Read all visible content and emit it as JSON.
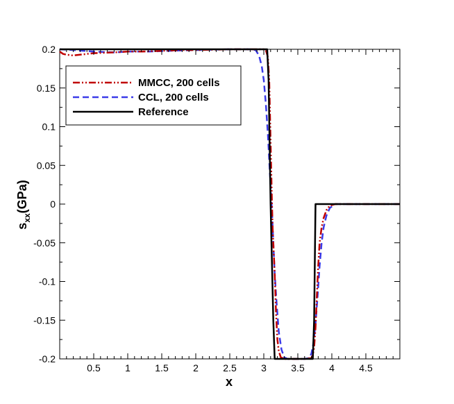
{
  "chart_data": {
    "type": "line",
    "title": "",
    "xlabel": "x",
    "ylabel_main": "s",
    "ylabel_sub": "xx",
    "ylabel_tail": "(GPa)",
    "xlim": [
      0,
      5
    ],
    "ylim": [
      -0.2,
      0.2
    ],
    "xticks": [
      0.5,
      1,
      1.5,
      2,
      2.5,
      3,
      3.5,
      4,
      4.5
    ],
    "xtick_labels": [
      "0.5",
      "1",
      "1.5",
      "2",
      "2.5",
      "3",
      "3.5",
      "4",
      "4.5"
    ],
    "yticks": [
      0.2,
      0.15,
      0.1,
      0.05,
      0,
      -0.05,
      -0.1,
      -0.15,
      -0.2
    ],
    "ytick_labels": [
      "0.2",
      "0.15",
      "0.1",
      "0.05",
      "0",
      "-0.05",
      "-0.1",
      "-0.15",
      "-0.2"
    ],
    "grid": false,
    "legend_position": "top-left",
    "series": [
      {
        "name": "MMCC, 200 cells",
        "color": "#c00000",
        "dash": "dashdotdot",
        "points": [
          [
            0,
            0.197
          ],
          [
            0.05,
            0.194
          ],
          [
            0.1,
            0.193
          ],
          [
            0.2,
            0.192
          ],
          [
            0.3,
            0.193
          ],
          [
            0.5,
            0.195
          ],
          [
            0.8,
            0.196
          ],
          [
            1.0,
            0.197
          ],
          [
            1.2,
            0.197
          ],
          [
            1.5,
            0.198
          ],
          [
            1.8,
            0.199
          ],
          [
            2.0,
            0.199
          ],
          [
            2.5,
            0.2
          ],
          [
            2.9,
            0.2
          ],
          [
            3.0,
            0.2
          ],
          [
            3.03,
            0.199
          ],
          [
            3.06,
            0.19
          ],
          [
            3.08,
            0.16
          ],
          [
            3.09,
            0.12
          ],
          [
            3.1,
            0.08
          ],
          [
            3.11,
            0.04
          ],
          [
            3.12,
            0.0
          ],
          [
            3.13,
            -0.03
          ],
          [
            3.14,
            -0.05
          ],
          [
            3.16,
            -0.09
          ],
          [
            3.18,
            -0.14
          ],
          [
            3.2,
            -0.175
          ],
          [
            3.22,
            -0.19
          ],
          [
            3.25,
            -0.198
          ],
          [
            3.3,
            -0.2
          ],
          [
            3.6,
            -0.2
          ],
          [
            3.7,
            -0.199
          ],
          [
            3.72,
            -0.195
          ],
          [
            3.74,
            -0.185
          ],
          [
            3.76,
            -0.16
          ],
          [
            3.78,
            -0.12
          ],
          [
            3.8,
            -0.08
          ],
          [
            3.82,
            -0.05
          ],
          [
            3.85,
            -0.03
          ],
          [
            3.88,
            -0.018
          ],
          [
            3.92,
            -0.008
          ],
          [
            3.97,
            -0.002
          ],
          [
            4.05,
            0.0
          ],
          [
            5.0,
            0.0
          ]
        ]
      },
      {
        "name": "CCL, 200 cells",
        "color": "#3a3ae8",
        "dash": "dashed",
        "points": [
          [
            0,
            0.2
          ],
          [
            0.2,
            0.199
          ],
          [
            0.5,
            0.197
          ],
          [
            0.8,
            0.196
          ],
          [
            1.0,
            0.197
          ],
          [
            1.3,
            0.197
          ],
          [
            1.6,
            0.198
          ],
          [
            2.0,
            0.199
          ],
          [
            2.5,
            0.2
          ],
          [
            2.8,
            0.2
          ],
          [
            2.88,
            0.199
          ],
          [
            2.93,
            0.192
          ],
          [
            2.97,
            0.178
          ],
          [
            3.0,
            0.16
          ],
          [
            3.03,
            0.13
          ],
          [
            3.06,
            0.09
          ],
          [
            3.09,
            0.04
          ],
          [
            3.12,
            -0.01
          ],
          [
            3.14,
            -0.05
          ],
          [
            3.16,
            -0.09
          ],
          [
            3.19,
            -0.13
          ],
          [
            3.22,
            -0.165
          ],
          [
            3.26,
            -0.188
          ],
          [
            3.3,
            -0.198
          ],
          [
            3.35,
            -0.2
          ],
          [
            3.6,
            -0.2
          ],
          [
            3.67,
            -0.199
          ],
          [
            3.7,
            -0.193
          ],
          [
            3.73,
            -0.18
          ],
          [
            3.76,
            -0.155
          ],
          [
            3.79,
            -0.12
          ],
          [
            3.82,
            -0.08
          ],
          [
            3.85,
            -0.05
          ],
          [
            3.88,
            -0.03
          ],
          [
            3.92,
            -0.015
          ],
          [
            3.97,
            -0.005
          ],
          [
            4.05,
            0.0
          ],
          [
            5.0,
            0.0
          ]
        ]
      },
      {
        "name": "Reference",
        "color": "#000000",
        "dash": "solid",
        "points": [
          [
            0,
            0.2
          ],
          [
            3.05,
            0.2
          ],
          [
            3.07,
            0.16
          ],
          [
            3.1,
            0.0
          ],
          [
            3.11,
            -0.04
          ],
          [
            3.14,
            -0.15
          ],
          [
            3.16,
            -0.2
          ],
          [
            3.72,
            -0.2
          ],
          [
            3.74,
            -0.15
          ],
          [
            3.76,
            0.0
          ],
          [
            5.0,
            0.0
          ]
        ]
      }
    ]
  }
}
